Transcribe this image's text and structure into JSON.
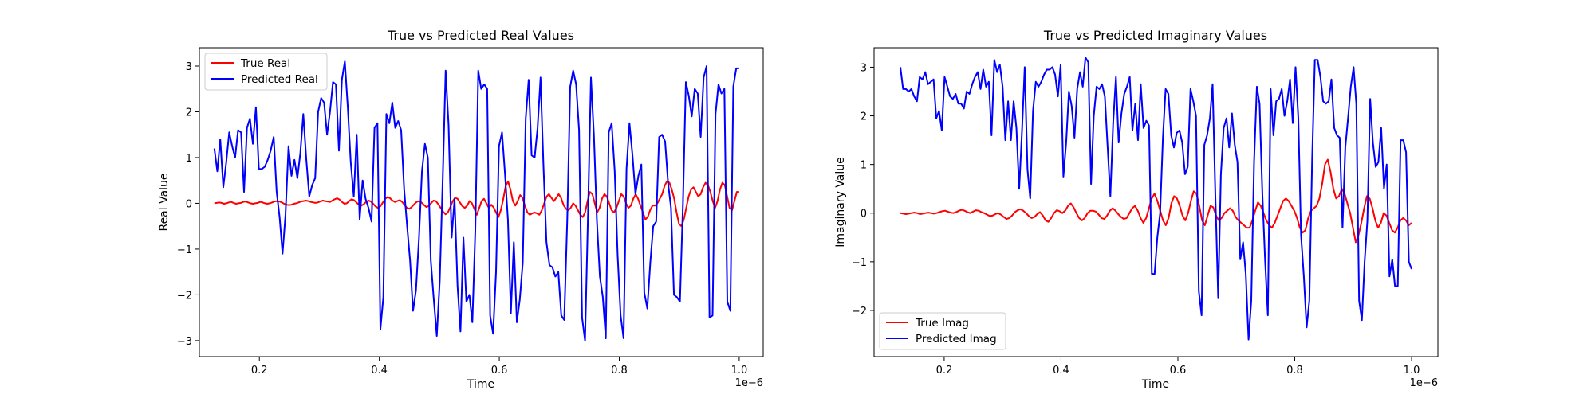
{
  "chart_data": [
    {
      "type": "line",
      "title": "True vs Predicted Real Values",
      "xlabel": "Time",
      "ylabel": "Real Value",
      "x_offset_label": "1e−6",
      "xlim": [
        0.1,
        1.04
      ],
      "ylim": [
        -3.35,
        3.4
      ],
      "xticks": [
        0.2,
        0.4,
        0.6,
        0.8,
        1.0
      ],
      "xtick_labels": [
        "0.2",
        "0.4",
        "0.6",
        "0.8",
        "1.0"
      ],
      "yticks": [
        -3,
        -2,
        -1,
        0,
        1,
        2,
        3
      ],
      "ytick_labels": [
        "−3",
        "−2",
        "−1",
        "0",
        "1",
        "2",
        "3"
      ],
      "legend_position": "upper-left",
      "x_start": 0.125,
      "x_end": 1.0,
      "series": [
        {
          "name": "True Real",
          "color": "#ff0000",
          "values": [
            0.0,
            0.01,
            0.02,
            0.01,
            -0.01,
            0.0,
            0.02,
            0.03,
            0.01,
            -0.01,
            0.0,
            0.01,
            0.03,
            0.04,
            0.02,
            0.0,
            -0.01,
            0.0,
            0.01,
            0.03,
            0.02,
            0.0,
            -0.01,
            0.0,
            0.02,
            0.04,
            0.05,
            0.04,
            0.02,
            -0.01,
            -0.03,
            -0.04,
            -0.03,
            -0.01,
            0.0,
            0.02,
            0.04,
            0.05,
            0.06,
            0.05,
            0.03,
            0.02,
            0.01,
            0.02,
            0.04,
            0.06,
            0.05,
            0.04,
            0.03,
            0.06,
            0.09,
            0.11,
            0.08,
            0.03,
            -0.01,
            0.0,
            0.05,
            0.09,
            0.07,
            0.02,
            -0.03,
            -0.05,
            -0.02,
            0.03,
            0.06,
            0.04,
            -0.01,
            -0.07,
            -0.1,
            -0.06,
            0.02,
            0.1,
            0.14,
            0.11,
            0.06,
            0.03,
            0.05,
            0.07,
            0.03,
            -0.04,
            -0.1,
            -0.12,
            -0.08,
            -0.02,
            0.03,
            0.05,
            0.02,
            -0.03,
            -0.08,
            -0.06,
            0.0,
            0.06,
            0.05,
            -0.02,
            -0.1,
            -0.18,
            -0.24,
            -0.2,
            -0.08,
            0.05,
            0.12,
            0.1,
            0.02,
            -0.06,
            -0.1,
            -0.05,
            0.05,
            0.0,
            -0.12,
            -0.25,
            -0.1,
            0.05,
            0.1,
            0.0,
            -0.1,
            -0.03,
            -0.09,
            -0.2,
            -0.3,
            -0.15,
            0.1,
            0.38,
            0.48,
            0.3,
            0.05,
            -0.05,
            0.05,
            0.18,
            0.12,
            -0.05,
            -0.2,
            -0.25,
            -0.22,
            -0.2,
            -0.22,
            -0.25,
            -0.15,
            0.0,
            0.15,
            0.2,
            0.12,
            0.05,
            0.12,
            0.2,
            0.12,
            -0.03,
            -0.12,
            -0.15,
            -0.1,
            0.0,
            -0.05,
            -0.15,
            -0.25,
            -0.3,
            -0.2,
            0.05,
            0.25,
            0.2,
            0.0,
            -0.2,
            -0.1,
            0.1,
            0.2,
            0.15,
            0.0,
            -0.15,
            -0.2,
            -0.1,
            0.05,
            0.2,
            0.15,
            0.0,
            -0.1,
            -0.05,
            0.1,
            0.2,
            0.1,
            -0.05,
            -0.2,
            -0.35,
            -0.3,
            -0.15,
            -0.05,
            -0.05,
            0.0,
            0.1,
            0.2,
            0.38,
            0.48,
            0.45,
            0.3,
            0.1,
            -0.2,
            -0.45,
            -0.5,
            -0.35,
            -0.1,
            0.15,
            0.3,
            0.35,
            0.25,
            0.15,
            0.2,
            0.35,
            0.45,
            0.4,
            0.25,
            0.05,
            -0.1,
            0.05,
            0.3,
            0.45,
            0.4,
            0.15,
            -0.1,
            -0.15,
            0.05,
            0.25,
            0.25
          ]
        },
        {
          "name": "Predicted Real",
          "color": "#0000ff",
          "values": [
            1.2,
            0.7,
            1.4,
            0.35,
            0.9,
            1.55,
            1.25,
            1.0,
            1.6,
            1.55,
            0.25,
            1.65,
            1.85,
            1.3,
            2.1,
            0.75,
            0.75,
            0.8,
            0.95,
            1.15,
            1.45,
            0.25,
            -0.3,
            -1.1,
            -0.25,
            1.25,
            0.6,
            0.95,
            0.55,
            1.1,
            1.95,
            0.95,
            0.15,
            0.4,
            0.55,
            2.0,
            2.3,
            2.2,
            1.5,
            2.0,
            2.65,
            2.6,
            1.15,
            2.7,
            3.1,
            2.1,
            0.9,
            0.15,
            1.5,
            -0.35,
            0.5,
            0.1,
            -0.1,
            -0.4,
            1.65,
            1.75,
            -2.75,
            -2.05,
            1.95,
            1.75,
            2.2,
            1.65,
            1.8,
            1.6,
            0.3,
            -0.5,
            -1.25,
            -2.35,
            -1.9,
            -0.75,
            0.7,
            1.3,
            1.0,
            -1.25,
            -2.1,
            -2.9,
            -1.7,
            0.5,
            2.9,
            1.7,
            -0.75,
            0.1,
            -1.8,
            -2.8,
            -0.75,
            -2.15,
            -2.0,
            -2.6,
            -0.6,
            2.9,
            2.5,
            2.6,
            2.5,
            -2.45,
            -2.85,
            -1.5,
            1.25,
            1.55,
            0.65,
            -0.35,
            -2.4,
            -0.85,
            -2.6,
            -2.1,
            -1.3,
            1.85,
            2.7,
            1.05,
            1.0,
            1.65,
            2.75,
            0.8,
            -0.85,
            -1.35,
            -1.4,
            -1.6,
            -1.5,
            -2.45,
            -2.55,
            -0.35,
            2.55,
            2.9,
            2.6,
            1.6,
            -2.5,
            -3.0,
            -0.25,
            2.75,
            1.5,
            -0.35,
            -1.6,
            -2.05,
            -2.95,
            1.55,
            1.75,
            0.7,
            -1.15,
            -2.45,
            -2.95,
            0.75,
            1.75,
            1.05,
            0.2,
            0.6,
            0.85,
            -1.95,
            -2.3,
            -1.3,
            -0.5,
            -0.4,
            1.45,
            1.5,
            1.35,
            0.45,
            -0.1,
            -2.0,
            -2.05,
            -2.15,
            -0.05,
            2.65,
            2.35,
            1.9,
            2.5,
            2.4,
            1.45,
            2.75,
            3.0,
            -2.5,
            -2.45,
            1.95,
            2.6,
            2.4,
            2.5,
            -2.15,
            -2.35,
            2.55,
            2.95,
            2.95
          ]
        }
      ]
    },
    {
      "type": "line",
      "title": "True vs Predicted Imaginary Values",
      "xlabel": "Time",
      "ylabel": "Imaginary Value",
      "x_offset_label": "1e−6",
      "xlim": [
        0.08,
        1.045
      ],
      "ylim": [
        -2.95,
        3.4
      ],
      "xticks": [
        0.2,
        0.4,
        0.6,
        0.8,
        1.0
      ],
      "xtick_labels": [
        "0.2",
        "0.4",
        "0.6",
        "0.8",
        "1.0"
      ],
      "yticks": [
        -2,
        -1,
        0,
        1,
        2,
        3
      ],
      "ytick_labels": [
        "−2",
        "−1",
        "0",
        "1",
        "2",
        "3"
      ],
      "legend_position": "lower-left",
      "x_start": 0.125,
      "x_end": 1.0,
      "series": [
        {
          "name": "True Imag",
          "color": "#ff0000",
          "values": [
            0.0,
            -0.01,
            -0.02,
            -0.01,
            0.0,
            0.01,
            0.0,
            -0.02,
            -0.01,
            0.0,
            0.01,
            0.0,
            -0.01,
            0.0,
            0.02,
            0.04,
            0.05,
            0.03,
            0.01,
            0.0,
            0.02,
            0.05,
            0.07,
            0.05,
            0.02,
            0.0,
            0.03,
            0.06,
            0.05,
            0.02,
            0.0,
            -0.03,
            -0.06,
            -0.05,
            -0.02,
            0.0,
            -0.03,
            -0.08,
            -0.12,
            -0.1,
            -0.05,
            0.02,
            0.06,
            0.08,
            0.05,
            0.0,
            -0.06,
            -0.1,
            -0.08,
            -0.02,
            0.02,
            -0.05,
            -0.15,
            -0.18,
            -0.1,
            0.0,
            0.06,
            0.04,
            0.0,
            0.05,
            0.15,
            0.2,
            0.12,
            0.0,
            -0.1,
            -0.15,
            -0.1,
            0.0,
            0.05,
            0.05,
            0.03,
            -0.03,
            -0.1,
            -0.12,
            -0.05,
            0.05,
            0.1,
            0.05,
            -0.02,
            -0.08,
            -0.12,
            -0.1,
            0.0,
            0.1,
            0.15,
            0.05,
            -0.1,
            -0.2,
            -0.1,
            0.1,
            0.3,
            0.4,
            0.25,
            0.05,
            -0.15,
            -0.25,
            -0.1,
            0.2,
            0.35,
            0.3,
            0.15,
            -0.05,
            -0.15,
            0.0,
            0.25,
            0.45,
            0.4,
            0.15,
            -0.15,
            -0.25,
            -0.05,
            0.15,
            0.12,
            -0.05,
            -0.15,
            -0.1,
            0.0,
            0.05,
            0.1,
            0.05,
            -0.08,
            -0.15,
            -0.2,
            -0.25,
            -0.3,
            -0.3,
            -0.15,
            0.05,
            0.22,
            0.15,
            0.0,
            -0.15,
            -0.25,
            -0.3,
            -0.2,
            -0.05,
            0.1,
            0.25,
            0.3,
            0.25,
            0.15,
            0.05,
            -0.1,
            -0.3,
            -0.4,
            -0.35,
            -0.1,
            0.05,
            0.1,
            0.15,
            0.3,
            0.6,
            1.0,
            1.1,
            0.85,
            0.5,
            0.3,
            0.35,
            0.5,
            0.4,
            0.2,
            0.0,
            -0.3,
            -0.6,
            -0.45,
            -0.2,
            0.1,
            0.35,
            0.3,
            0.1,
            -0.15,
            -0.3,
            -0.2,
            0.0,
            -0.05,
            -0.2,
            -0.35,
            -0.4,
            -0.3,
            -0.15,
            -0.1,
            -0.15,
            -0.25,
            -0.2
          ]
        },
        {
          "name": "Predicted Imag",
          "color": "#0000ff",
          "values": [
            3.0,
            2.55,
            2.55,
            2.5,
            2.55,
            2.4,
            2.3,
            2.8,
            2.75,
            2.9,
            2.65,
            2.7,
            2.75,
            1.95,
            2.1,
            1.7,
            2.8,
            2.6,
            2.4,
            2.35,
            2.45,
            2.25,
            2.25,
            2.15,
            2.5,
            2.45,
            2.65,
            2.8,
            2.9,
            2.55,
            2.95,
            2.6,
            2.7,
            1.6,
            3.15,
            2.9,
            3.05,
            2.6,
            1.5,
            2.3,
            1.5,
            2.3,
            1.75,
            0.5,
            1.65,
            3.0,
            0.9,
            0.3,
            2.1,
            2.7,
            2.6,
            2.7,
            2.85,
            2.95,
            2.95,
            3.0,
            2.85,
            2.4,
            3.05,
            0.75,
            1.45,
            2.5,
            2.2,
            1.55,
            2.55,
            2.9,
            2.6,
            3.2,
            3.1,
            0.6,
            2.0,
            2.6,
            2.55,
            2.65,
            2.4,
            1.35,
            0.35,
            1.85,
            2.8,
            1.45,
            2.05,
            2.45,
            2.6,
            2.8,
            1.7,
            2.25,
            1.5,
            2.65,
            1.75,
            1.9,
            1.8,
            -1.25,
            -1.25,
            -0.5,
            0.0,
            1.55,
            2.55,
            2.45,
            1.6,
            1.35,
            1.65,
            1.7,
            1.45,
            0.8,
            0.95,
            2.55,
            2.3,
            2.0,
            -1.6,
            -2.1,
            1.4,
            1.6,
            1.95,
            2.65,
            0.35,
            -1.75,
            0.8,
            1.75,
            1.95,
            1.35,
            2.05,
            1.4,
            1.05,
            -0.95,
            -0.6,
            -1.25,
            -2.6,
            -1.8,
            1.05,
            2.6,
            2.25,
            0.4,
            -1.0,
            -2.1,
            2.55,
            1.6,
            2.3,
            2.35,
            2.55,
            2.0,
            2.3,
            2.75,
            1.85,
            3.0,
            1.95,
            -0.45,
            -1.3,
            -2.35,
            -1.8,
            1.1,
            3.15,
            3.15,
            2.8,
            2.3,
            2.25,
            2.3,
            2.75,
            1.75,
            1.6,
            1.55,
            -0.3,
            1.35,
            1.95,
            2.6,
            3.0,
            2.25,
            -1.8,
            -2.2,
            -1.0,
            -0.15,
            2.35,
            1.45,
            0.95,
            1.05,
            1.75,
            0.5,
            1.0,
            -1.3,
            -0.95,
            -1.5,
            -1.5,
            1.5,
            1.5,
            1.25,
            -1.0,
            -1.15
          ]
        }
      ]
    }
  ]
}
